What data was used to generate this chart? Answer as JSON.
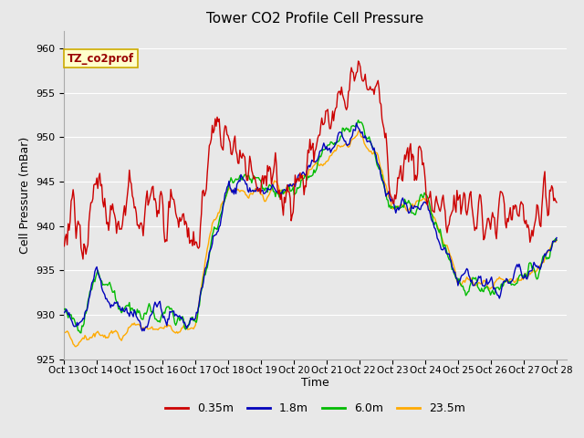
{
  "title": "Tower CO2 Profile Cell Pressure",
  "xlabel": "Time",
  "ylabel": "Cell Pressure (mBar)",
  "ylim": [
    925,
    962
  ],
  "yticks": [
    925,
    930,
    935,
    940,
    945,
    950,
    955,
    960
  ],
  "x_tick_positions": [
    13,
    14,
    15,
    16,
    17,
    18,
    19,
    20,
    21,
    22,
    23,
    24,
    25,
    26,
    27,
    28
  ],
  "x_tick_labels": [
    "Oct 13",
    "Oct 14",
    "Oct 15",
    "Oct 16",
    "Oct 17",
    "Oct 18",
    "Oct 19",
    "Oct 20",
    "Oct 21",
    "Oct 22",
    "Oct 23",
    "Oct 24",
    "Oct 25",
    "Oct 26",
    "Oct 27",
    "Oct 28"
  ],
  "series_labels": [
    "0.35m",
    "1.8m",
    "6.0m",
    "23.5m"
  ],
  "series_colors": [
    "#cc0000",
    "#0000bb",
    "#00bb00",
    "#ffaa00"
  ],
  "annotation_text": "TZ_co2prof",
  "annotation_color": "#990000",
  "annotation_bg": "#ffffcc",
  "annotation_edge": "#ccaa00",
  "fig_bg_color": "#e8e8e8",
  "plot_bg_color": "#e8e8e8",
  "grid_color": "#ffffff",
  "line_width": 1.0,
  "n_points": 500,
  "x_start": 13,
  "x_end": 28
}
